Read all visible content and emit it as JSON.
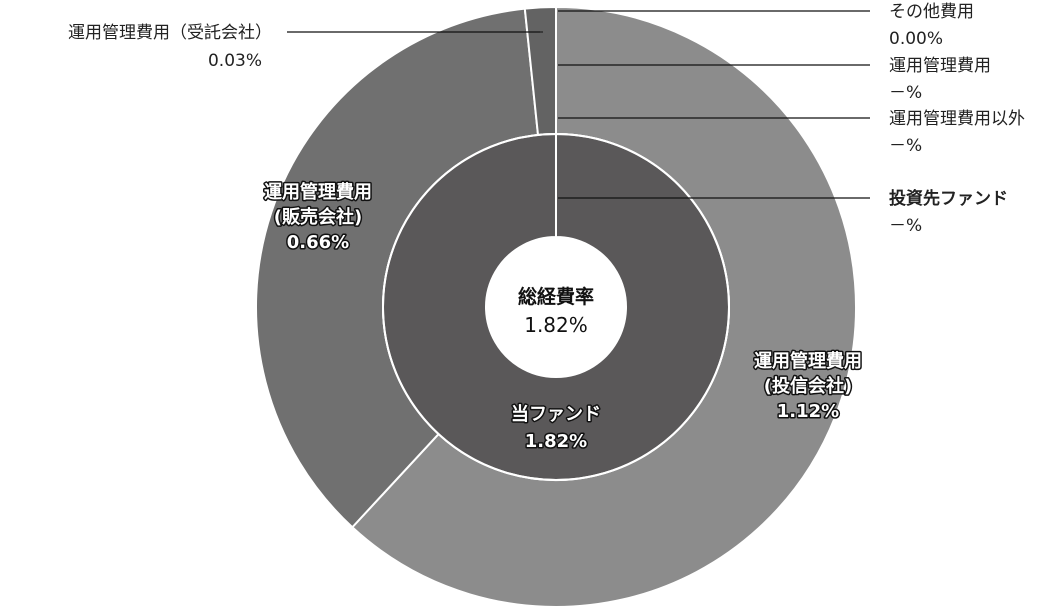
{
  "chart_data": {
    "type": "pie",
    "center_label": {
      "title": "総経費率",
      "value": "1.82%"
    },
    "inner_ring": [
      {
        "label": "当ファンド",
        "value": 1.82,
        "value_text": "1.82%",
        "color": "#5a5859"
      },
      {
        "label": "投資先ファンド",
        "value": 0,
        "value_text": "－%",
        "color": "#5a5859"
      }
    ],
    "outer_ring": [
      {
        "label": "運用管理費用（投信会社）",
        "label_lines": [
          "運用管理費用",
          "(投信会社)"
        ],
        "value": 1.12,
        "value_text": "1.12%",
        "color": "#8c8c8c"
      },
      {
        "label": "運用管理費用（販売会社）",
        "label_lines": [
          "運用管理費用",
          "(販売会社)"
        ],
        "value": 0.66,
        "value_text": "0.66%",
        "color": "#707070"
      },
      {
        "label": "運用管理費用（受託会社）",
        "value": 0.03,
        "value_text": "0.03%",
        "color": "#636363"
      },
      {
        "label": "その他費用",
        "value": 0.0,
        "value_text": "0.00%",
        "color": "#636363"
      },
      {
        "label": "運用管理費用",
        "value": 0,
        "value_text": "－%",
        "color": "#8c8c8c"
      },
      {
        "label": "運用管理費用以外",
        "value": 0,
        "value_text": "－%",
        "color": "#8c8c8c"
      }
    ]
  }
}
